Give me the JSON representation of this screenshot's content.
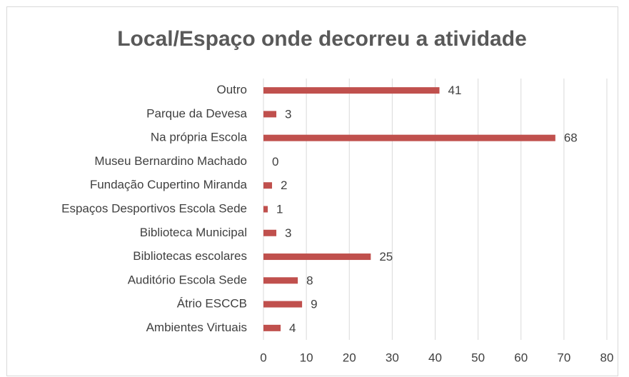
{
  "chart_data": {
    "type": "bar",
    "orientation": "horizontal",
    "title": "Local/Espaço onde decorreu a atividade",
    "categories": [
      "Outro",
      "Parque da Devesa",
      "Na própria Escola",
      "Museu Bernardino Machado",
      "Fundação Cupertino Miranda",
      "Espaços Desportivos Escola Sede",
      "Biblioteca Municipal",
      "Bibliotecas escolares",
      "Auditório Escola Sede",
      "Átrio ESCCB",
      "Ambientes Virtuais"
    ],
    "values": [
      41,
      3,
      68,
      0,
      2,
      1,
      3,
      25,
      8,
      9,
      4
    ],
    "color": "#c0504d",
    "xlim": [
      0,
      80
    ],
    "xticks": [
      0,
      10,
      20,
      30,
      40,
      50,
      60,
      70,
      80
    ],
    "grid": true
  }
}
